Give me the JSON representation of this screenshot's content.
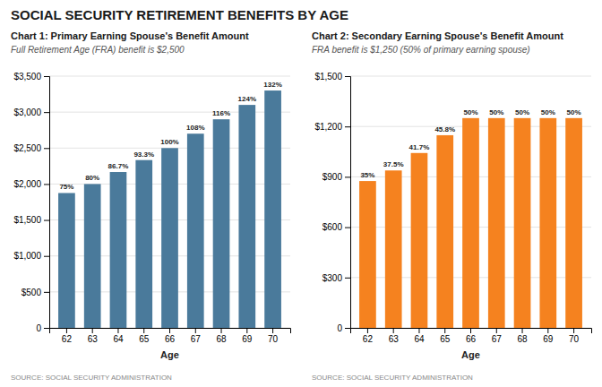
{
  "title": "SOCIAL SECURITY RETIREMENT BENEFITS BY AGE",
  "chart_data": [
    {
      "type": "bar",
      "title": "Chart 1: Primary Earning Spouse's Benefit Amount",
      "subtitle": "Full Retirement Age (FRA) benefit is $2,500",
      "xlabel": "Age",
      "categories": [
        "62",
        "63",
        "64",
        "65",
        "66",
        "67",
        "68",
        "69",
        "70"
      ],
      "values": [
        1875,
        2000,
        2167,
        2333,
        2500,
        2700,
        2900,
        3100,
        3300
      ],
      "color": "#4a7a9b",
      "ylim": [
        0,
        3500
      ],
      "yticks": [
        0,
        {
          "value": 500,
          "label": "$500"
        },
        {
          "value": 1000,
          "label": "$1,000"
        },
        {
          "value": 1500,
          "label": "$1,500"
        },
        {
          "value": 2000,
          "label": "$2,000"
        },
        {
          "value": 2500,
          "label": "$2,500"
        },
        {
          "value": 3000,
          "label": "$3,000"
        },
        {
          "value": 3500,
          "label": "$3,500"
        }
      ],
      "grid": true,
      "annotations": [
        {
          "category": "62",
          "text": "75%"
        },
        {
          "category": "63",
          "text": "80%"
        },
        {
          "category": "64",
          "text": "86.7%"
        },
        {
          "category": "65",
          "text": "93.3%"
        },
        {
          "category": "66",
          "text": "100%"
        },
        {
          "category": "67",
          "text": "108%"
        },
        {
          "category": "68",
          "text": "116%"
        },
        {
          "category": "69",
          "text": "124%"
        },
        {
          "category": "70",
          "text": "132%"
        }
      ],
      "source": "SOURCE: SOCIAL SECURITY ADMINISTRATION"
    },
    {
      "type": "bar",
      "title": "Chart 2: Secondary Earning Spouse's Benefit Amount",
      "subtitle": "FRA benefit is $1,250 (50% of primary earning spouse)",
      "xlabel": "Age",
      "categories": [
        "62",
        "63",
        "64",
        "65",
        "66",
        "67",
        "68",
        "69",
        "70"
      ],
      "values": [
        875,
        938,
        1042,
        1148,
        1250,
        1250,
        1250,
        1250,
        1250
      ],
      "color": "#f5821f",
      "ylim": [
        0,
        1500
      ],
      "yticks": [
        0,
        {
          "value": 300,
          "label": "$300"
        },
        {
          "value": 600,
          "label": "$600"
        },
        {
          "value": 900,
          "label": "$900"
        },
        {
          "value": 1200,
          "label": "$1,200"
        },
        {
          "value": 1500,
          "label": "$1,500"
        }
      ],
      "grid": true,
      "annotations": [
        {
          "category": "62",
          "text": "35%"
        },
        {
          "category": "63",
          "text": "37.5%"
        },
        {
          "category": "64",
          "text": "41.7%"
        },
        {
          "category": "65",
          "text": "45.8%"
        },
        {
          "category": "66",
          "text": "50%"
        },
        {
          "category": "67",
          "text": "50%"
        },
        {
          "category": "68",
          "text": "50%"
        },
        {
          "category": "69",
          "text": "50%"
        },
        {
          "category": "70",
          "text": "50%"
        }
      ],
      "source": "SOURCE: SOCIAL SECURITY ADMINISTRATION"
    }
  ]
}
